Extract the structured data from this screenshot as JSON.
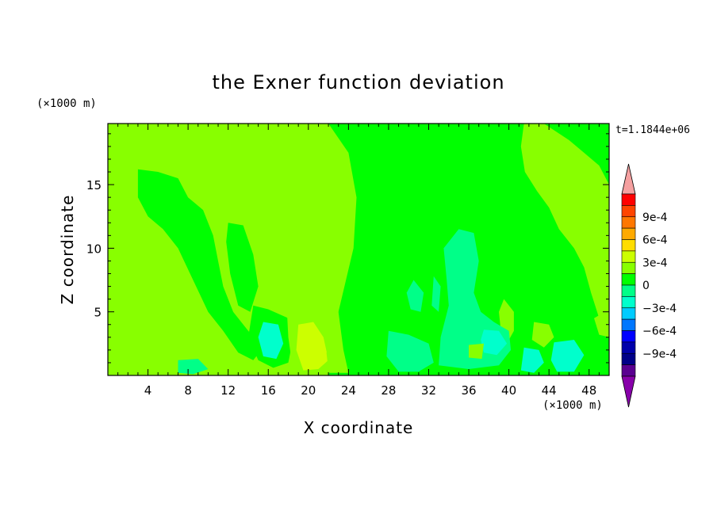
{
  "chart_data": {
    "type": "heatmap",
    "title": "the Exner function deviation",
    "xlabel": "X coordinate",
    "ylabel": "Z coordinate",
    "x_unit": "(×1000 m)",
    "y_unit": "(×1000 m)",
    "time_label": "t=1.1844e+06",
    "xlim": [
      0,
      50
    ],
    "ylim": [
      0,
      19.8
    ],
    "x_ticks": [
      4,
      8,
      12,
      16,
      20,
      24,
      28,
      32,
      36,
      40,
      44,
      48
    ],
    "y_ticks": [
      5,
      10,
      15
    ],
    "colorbar": {
      "labels": [
        "9e-4",
        "6e-4",
        "3e-4",
        "0",
        "−3e-4",
        "−6e-4",
        "−9e-4"
      ],
      "label_values": [
        0.0009,
        0.0006,
        0.0003,
        0,
        -0.0003,
        -0.0006,
        -0.0009
      ],
      "levels": [
        0.00105,
        0.0009,
        0.00075,
        0.0006,
        0.00045,
        0.0003,
        0.00015,
        0,
        -0.00015,
        -0.0003,
        -0.00045,
        -0.0006,
        -0.00075,
        -0.0009,
        -0.00105
      ],
      "colors": [
        "#f5a0a0",
        "#ff0000",
        "#ff4400",
        "#ff7700",
        "#ffaa00",
        "#ffdd00",
        "#ccff00",
        "#88ff00",
        "#00ff00",
        "#00ff88",
        "#00ffcc",
        "#00ccff",
        "#0077ff",
        "#0000ff",
        "#0000aa",
        "#000088",
        "#5a0090",
        "#8800aa"
      ]
    },
    "regions": [
      {
        "level": 5e-05,
        "points": [
          [
            0,
            0
          ],
          [
            50,
            0
          ],
          [
            50,
            19.8
          ],
          [
            0,
            19.8
          ]
        ]
      },
      {
        "level": -0.0001,
        "points": [
          [
            22,
            19.8
          ],
          [
            41.5,
            19.8
          ],
          [
            41.2,
            18
          ],
          [
            41.6,
            16
          ],
          [
            42.8,
            14.5
          ],
          [
            44,
            13.2
          ],
          [
            45,
            11.5
          ],
          [
            46.5,
            10
          ],
          [
            47.5,
            8.5
          ],
          [
            48.2,
            6.5
          ],
          [
            49,
            4.5
          ],
          [
            50,
            3
          ],
          [
            50,
            0
          ],
          [
            22,
            0
          ],
          [
            23,
            5
          ],
          [
            24.5,
            10
          ],
          [
            24.8,
            14
          ],
          [
            24,
            17.5
          ]
        ]
      },
      {
        "level": -0.0001,
        "points": [
          [
            43.5,
            19.8
          ],
          [
            50,
            19.8
          ],
          [
            50,
            15
          ],
          [
            49,
            16.5
          ],
          [
            47.5,
            17.5
          ],
          [
            46,
            18.5
          ]
        ]
      },
      {
        "level": -0.0001,
        "points": [
          [
            3,
            16.2
          ],
          [
            5,
            16
          ],
          [
            7,
            15.5
          ],
          [
            8,
            14
          ],
          [
            9.5,
            13
          ],
          [
            10.5,
            11
          ],
          [
            11,
            9
          ],
          [
            11.5,
            7
          ],
          [
            12.5,
            5
          ],
          [
            14,
            3.5
          ],
          [
            15.5,
            2.2
          ],
          [
            14.5,
            1.2
          ],
          [
            13,
            1.8
          ],
          [
            11.5,
            3.5
          ],
          [
            10,
            5
          ],
          [
            8.5,
            7.5
          ],
          [
            7,
            10
          ],
          [
            5.5,
            11.5
          ],
          [
            4,
            12.5
          ],
          [
            3,
            14
          ]
        ]
      },
      {
        "level": -0.0001,
        "points": [
          [
            12,
            12
          ],
          [
            13.5,
            11.8
          ],
          [
            14.5,
            9.5
          ],
          [
            15,
            7
          ],
          [
            14.2,
            5
          ],
          [
            13,
            5.5
          ],
          [
            12.2,
            8
          ],
          [
            11.8,
            10.5
          ]
        ]
      },
      {
        "level": -0.0001,
        "points": [
          [
            14.5,
            5.5
          ],
          [
            16,
            5.2
          ],
          [
            18,
            4.5
          ],
          [
            18.5,
            3
          ],
          [
            18,
            1
          ],
          [
            16.5,
            0.6
          ],
          [
            15,
            1.2
          ],
          [
            14,
            3
          ]
        ]
      },
      {
        "level": 0.00015,
        "points": [
          [
            18.3,
            11.5
          ],
          [
            19.8,
            12.2
          ],
          [
            21.5,
            11.5
          ],
          [
            22.5,
            9
          ],
          [
            23,
            5
          ],
          [
            23.5,
            2
          ],
          [
            24,
            0.2
          ],
          [
            18.5,
            0.2
          ],
          [
            18,
            3
          ],
          [
            17.8,
            6
          ],
          [
            17.6,
            9
          ]
        ]
      },
      {
        "level": 0.00025,
        "points": [
          [
            19,
            4
          ],
          [
            20.5,
            4.2
          ],
          [
            21.5,
            3
          ],
          [
            22,
            1.2
          ],
          [
            21,
            0.5
          ],
          [
            19.5,
            0.4
          ],
          [
            18.8,
            2
          ]
        ]
      },
      {
        "level": 0.00015,
        "points": [
          [
            0,
            8.5
          ],
          [
            1,
            7.5
          ],
          [
            2,
            5.5
          ],
          [
            3.5,
            4
          ],
          [
            5.5,
            3.5
          ],
          [
            6.5,
            2
          ],
          [
            6,
            0.7
          ],
          [
            4.5,
            0.2
          ],
          [
            2,
            0.8
          ],
          [
            0,
            1.5
          ]
        ]
      },
      {
        "level": 0.00015,
        "points": [
          [
            39.5,
            6
          ],
          [
            40.5,
            5
          ],
          [
            40.5,
            3.5
          ],
          [
            39.8,
            2.5
          ],
          [
            39.2,
            3.5
          ],
          [
            39,
            5
          ]
        ]
      },
      {
        "level": 0.00015,
        "points": [
          [
            42.5,
            4.2
          ],
          [
            44,
            4
          ],
          [
            44.5,
            3
          ],
          [
            43.5,
            2.2
          ],
          [
            42.3,
            2.8
          ]
        ]
      },
      {
        "level": 0.00015,
        "points": [
          [
            48.5,
            4.5
          ],
          [
            50,
            5.2
          ],
          [
            50,
            3
          ],
          [
            49,
            3.2
          ]
        ]
      },
      {
        "level": -0.0002,
        "points": [
          [
            33.5,
            10
          ],
          [
            35,
            11.5
          ],
          [
            36.5,
            11.2
          ],
          [
            37,
            9
          ],
          [
            36.5,
            6.5
          ],
          [
            37.2,
            5
          ],
          [
            38.5,
            4.2
          ],
          [
            40,
            3.5
          ],
          [
            40.2,
            2
          ],
          [
            39,
            0.8
          ],
          [
            36,
            0.5
          ],
          [
            33,
            0.8
          ],
          [
            33.2,
            3
          ],
          [
            34,
            5.5
          ],
          [
            33.8,
            7.5
          ]
        ]
      },
      {
        "level": -0.0002,
        "points": [
          [
            30.5,
            7.5
          ],
          [
            31.5,
            6.5
          ],
          [
            31.2,
            5
          ],
          [
            30.2,
            5.2
          ],
          [
            29.8,
            6.5
          ]
        ]
      },
      {
        "level": -0.0002,
        "points": [
          [
            32.5,
            7.8
          ],
          [
            33.2,
            7
          ],
          [
            33,
            5
          ],
          [
            32.3,
            5.5
          ]
        ]
      },
      {
        "level": -0.0002,
        "points": [
          [
            28,
            3.5
          ],
          [
            30,
            3.2
          ],
          [
            32,
            2.5
          ],
          [
            32.5,
            1
          ],
          [
            31,
            0.3
          ],
          [
            29,
            0.3
          ],
          [
            27.8,
            1.5
          ]
        ]
      },
      {
        "level": -0.0003,
        "points": [
          [
            15.5,
            4.2
          ],
          [
            17,
            4
          ],
          [
            17.5,
            2.5
          ],
          [
            16.8,
            1.3
          ],
          [
            15.5,
            1.5
          ],
          [
            15,
            3
          ]
        ]
      },
      {
        "level": -0.0003,
        "points": [
          [
            37.5,
            3.6
          ],
          [
            39,
            3.5
          ],
          [
            39.8,
            2.5
          ],
          [
            38.8,
            1.6
          ],
          [
            37.5,
            1.8
          ],
          [
            37.2,
            2.8
          ]
        ]
      },
      {
        "level": -0.0003,
        "points": [
          [
            41.5,
            2.2
          ],
          [
            43,
            2
          ],
          [
            43.5,
            1
          ],
          [
            42.5,
            0.2
          ],
          [
            41.2,
            0.4
          ]
        ]
      },
      {
        "level": -0.0003,
        "points": [
          [
            44.5,
            2.6
          ],
          [
            46.5,
            2.8
          ],
          [
            47.5,
            1.6
          ],
          [
            46.5,
            0.3
          ],
          [
            44.8,
            0.3
          ],
          [
            44.2,
            1.2
          ]
        ]
      },
      {
        "level": -0.0002,
        "points": [
          [
            7,
            1.2
          ],
          [
            9,
            1.3
          ],
          [
            10,
            0.5
          ],
          [
            8.5,
            0.1
          ],
          [
            7,
            0.2
          ]
        ]
      },
      {
        "level": 5e-05,
        "points": [
          [
            21.8,
            1.8
          ],
          [
            23,
            2
          ],
          [
            23.2,
            0.8
          ],
          [
            22,
            0.4
          ]
        ]
      },
      {
        "level": 5e-05,
        "points": [
          [
            36,
            2.4
          ],
          [
            37.5,
            2.5
          ],
          [
            37.3,
            1.3
          ],
          [
            36,
            1.4
          ]
        ]
      }
    ]
  }
}
